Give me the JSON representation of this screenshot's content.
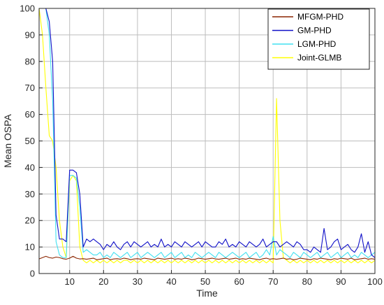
{
  "chart_data": {
    "type": "line",
    "title": "",
    "xlabel": "Time",
    "ylabel": "Mean OSPA",
    "xlim": [
      1,
      100
    ],
    "ylim": [
      0,
      100
    ],
    "xticks": [
      10,
      20,
      30,
      40,
      50,
      60,
      70,
      80,
      90,
      100
    ],
    "yticks": [
      0,
      10,
      20,
      30,
      40,
      50,
      60,
      70,
      80,
      90,
      100
    ],
    "legend_position": "top-right",
    "series": [
      {
        "name": "MFGM-PHD",
        "color": "#8B2500",
        "values": [
          5.5,
          6,
          6.5,
          6,
          5.8,
          6.2,
          6,
          5.6,
          5.4,
          5.8,
          6.5,
          5.8,
          5.5,
          5.6,
          5.4,
          5.6,
          5.8,
          5.2,
          5.4,
          5.6,
          5.8,
          5.2,
          5.5,
          5.6,
          5.4,
          5.8,
          5.6,
          5.2,
          5.5,
          5.6,
          5.4,
          5.8,
          5.6,
          5.4,
          5.2,
          5.8,
          5.6,
          5.4,
          5.6,
          5.8,
          5.4,
          5.6,
          5.4,
          5.8,
          5.6,
          5.2,
          5.4,
          5.8,
          5.6,
          5.4,
          5.6,
          5.8,
          5.5,
          5.4,
          5.6,
          5.8,
          5.4,
          5.6,
          5.8,
          5.4,
          5.6,
          5.4,
          5.8,
          5.6,
          5.4,
          5.2,
          5.6,
          5.8,
          5.4,
          5.6,
          5.4,
          5.6,
          5.8,
          5.4,
          5.6,
          5.2,
          5.4,
          5.8,
          5.6,
          5.4,
          5.2,
          5.6,
          5.4,
          5.8,
          5.6,
          5.4,
          5.2,
          5.6,
          5.4,
          5.8,
          5.6,
          5.4,
          5.8,
          5.2,
          5.4,
          5.6,
          5.8,
          5.4,
          5.6,
          5.4
        ]
      },
      {
        "name": "GM-PHD",
        "color": "#1010C8",
        "values": [
          100,
          100,
          100,
          95,
          80,
          22,
          13,
          13,
          12,
          39,
          39,
          38,
          30,
          10,
          13,
          12,
          13,
          12,
          11,
          9,
          11,
          10,
          12,
          10,
          9,
          11,
          12,
          10,
          12,
          11,
          10,
          11,
          12,
          10,
          11,
          10,
          13,
          10,
          11,
          10,
          12,
          11,
          10,
          12,
          11,
          10,
          11,
          12,
          10,
          12,
          11,
          10,
          10,
          12,
          11,
          13,
          10,
          11,
          10,
          12,
          11,
          10,
          12,
          11,
          10,
          11,
          13,
          10,
          11,
          12,
          12,
          10,
          11,
          12,
          11,
          10,
          12,
          11,
          9,
          9,
          8,
          10,
          9,
          8,
          17,
          9,
          10,
          12,
          13,
          9,
          10,
          11,
          9,
          8,
          10,
          15,
          8,
          12,
          7,
          6
        ]
      },
      {
        "name": "LGM-PHD",
        "color": "#40E0F0",
        "values": [
          100,
          100,
          100,
          90,
          65,
          12,
          7,
          6,
          6,
          37,
          37,
          36,
          25,
          8,
          9,
          8,
          7,
          7,
          8,
          6,
          7,
          6,
          8,
          7,
          6,
          7,
          8,
          6,
          7,
          8,
          6,
          7,
          8,
          7,
          6,
          7,
          8,
          6,
          7,
          8,
          6,
          7,
          8,
          6,
          7,
          6,
          8,
          7,
          6,
          7,
          8,
          7,
          6,
          8,
          7,
          6,
          7,
          8,
          7,
          6,
          7,
          8,
          6,
          7,
          8,
          6,
          7,
          9,
          7,
          14,
          7,
          9,
          8,
          7,
          6,
          8,
          7,
          6,
          8,
          7,
          6,
          7,
          8,
          6,
          7,
          8,
          6,
          7,
          8,
          6,
          7,
          8,
          6,
          7,
          6,
          8,
          7,
          6,
          7,
          8
        ]
      },
      {
        "name": "Joint-GLMB",
        "color": "#FFFF00",
        "values": [
          100,
          90,
          70,
          52,
          50,
          40,
          20,
          10,
          6,
          35,
          37,
          35,
          10,
          5,
          4,
          5,
          4,
          5,
          4,
          5,
          4,
          5,
          4,
          5,
          4,
          5,
          5,
          4,
          5,
          4,
          5,
          4,
          5,
          4,
          5,
          4,
          5,
          4,
          5,
          4,
          5,
          4,
          5,
          4,
          5,
          4,
          5,
          4,
          5,
          4,
          5,
          4,
          5,
          4,
          5,
          4,
          5,
          4,
          5,
          4,
          5,
          4,
          5,
          4,
          5,
          4,
          5,
          4,
          5,
          4,
          66,
          20,
          6,
          5,
          4,
          5,
          4,
          5,
          4,
          5,
          4,
          5,
          4,
          5,
          4,
          5,
          4,
          5,
          4,
          5,
          4,
          5,
          4,
          5,
          4,
          5,
          4,
          5,
          4,
          5
        ]
      }
    ]
  }
}
